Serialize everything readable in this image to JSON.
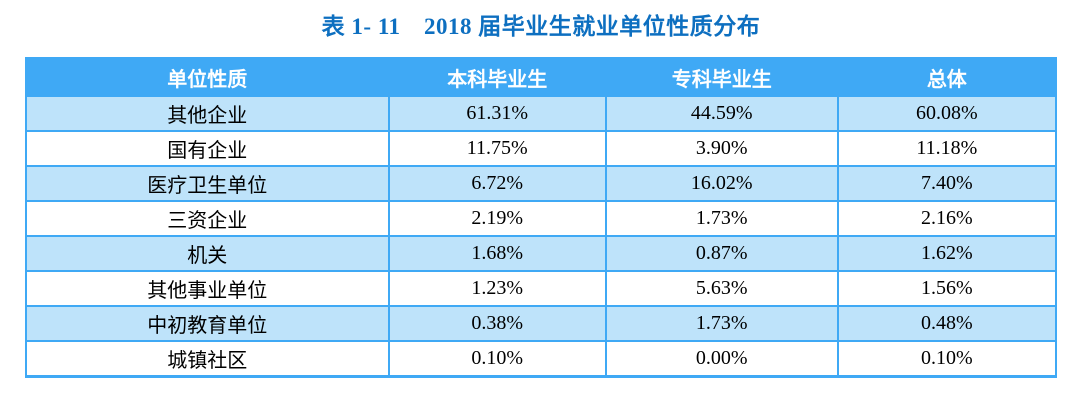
{
  "colors": {
    "header_bg": "#3FA9F5",
    "table_border": "#3FA9F5",
    "stripe_row_bg": "#BEE3FA",
    "plain_row_bg": "#FFFFFF",
    "title_text": "#0D6FC0",
    "header_text": "#FFFFFF",
    "cell_text": "#000000"
  },
  "chart_data": {
    "type": "table",
    "title": "表 1- 11　2018 届毕业生就业单位性质分布",
    "columns": [
      "单位性质",
      "本科毕业生",
      "专科毕业生",
      "总体"
    ],
    "rows": [
      [
        "其他企业",
        "61.31%",
        "44.59%",
        "60.08%"
      ],
      [
        "国有企业",
        "11.75%",
        "3.90%",
        "11.18%"
      ],
      [
        "医疗卫生单位",
        "6.72%",
        "16.02%",
        "7.40%"
      ],
      [
        "三资企业",
        "2.19%",
        "1.73%",
        "2.16%"
      ],
      [
        "机关",
        "1.68%",
        "0.87%",
        "1.62%"
      ],
      [
        "其他事业单位",
        "1.23%",
        "5.63%",
        "1.56%"
      ],
      [
        "中初教育单位",
        "0.38%",
        "1.73%",
        "0.48%"
      ],
      [
        "城镇社区",
        "0.10%",
        "0.00%",
        "0.10%"
      ]
    ],
    "layout": {
      "striped": true,
      "stripe_rows": "odd (1st, 3rd, 5th, 7th data rows)",
      "header_style": "solid blue background, white bold text",
      "cell_alignment": "center"
    }
  }
}
